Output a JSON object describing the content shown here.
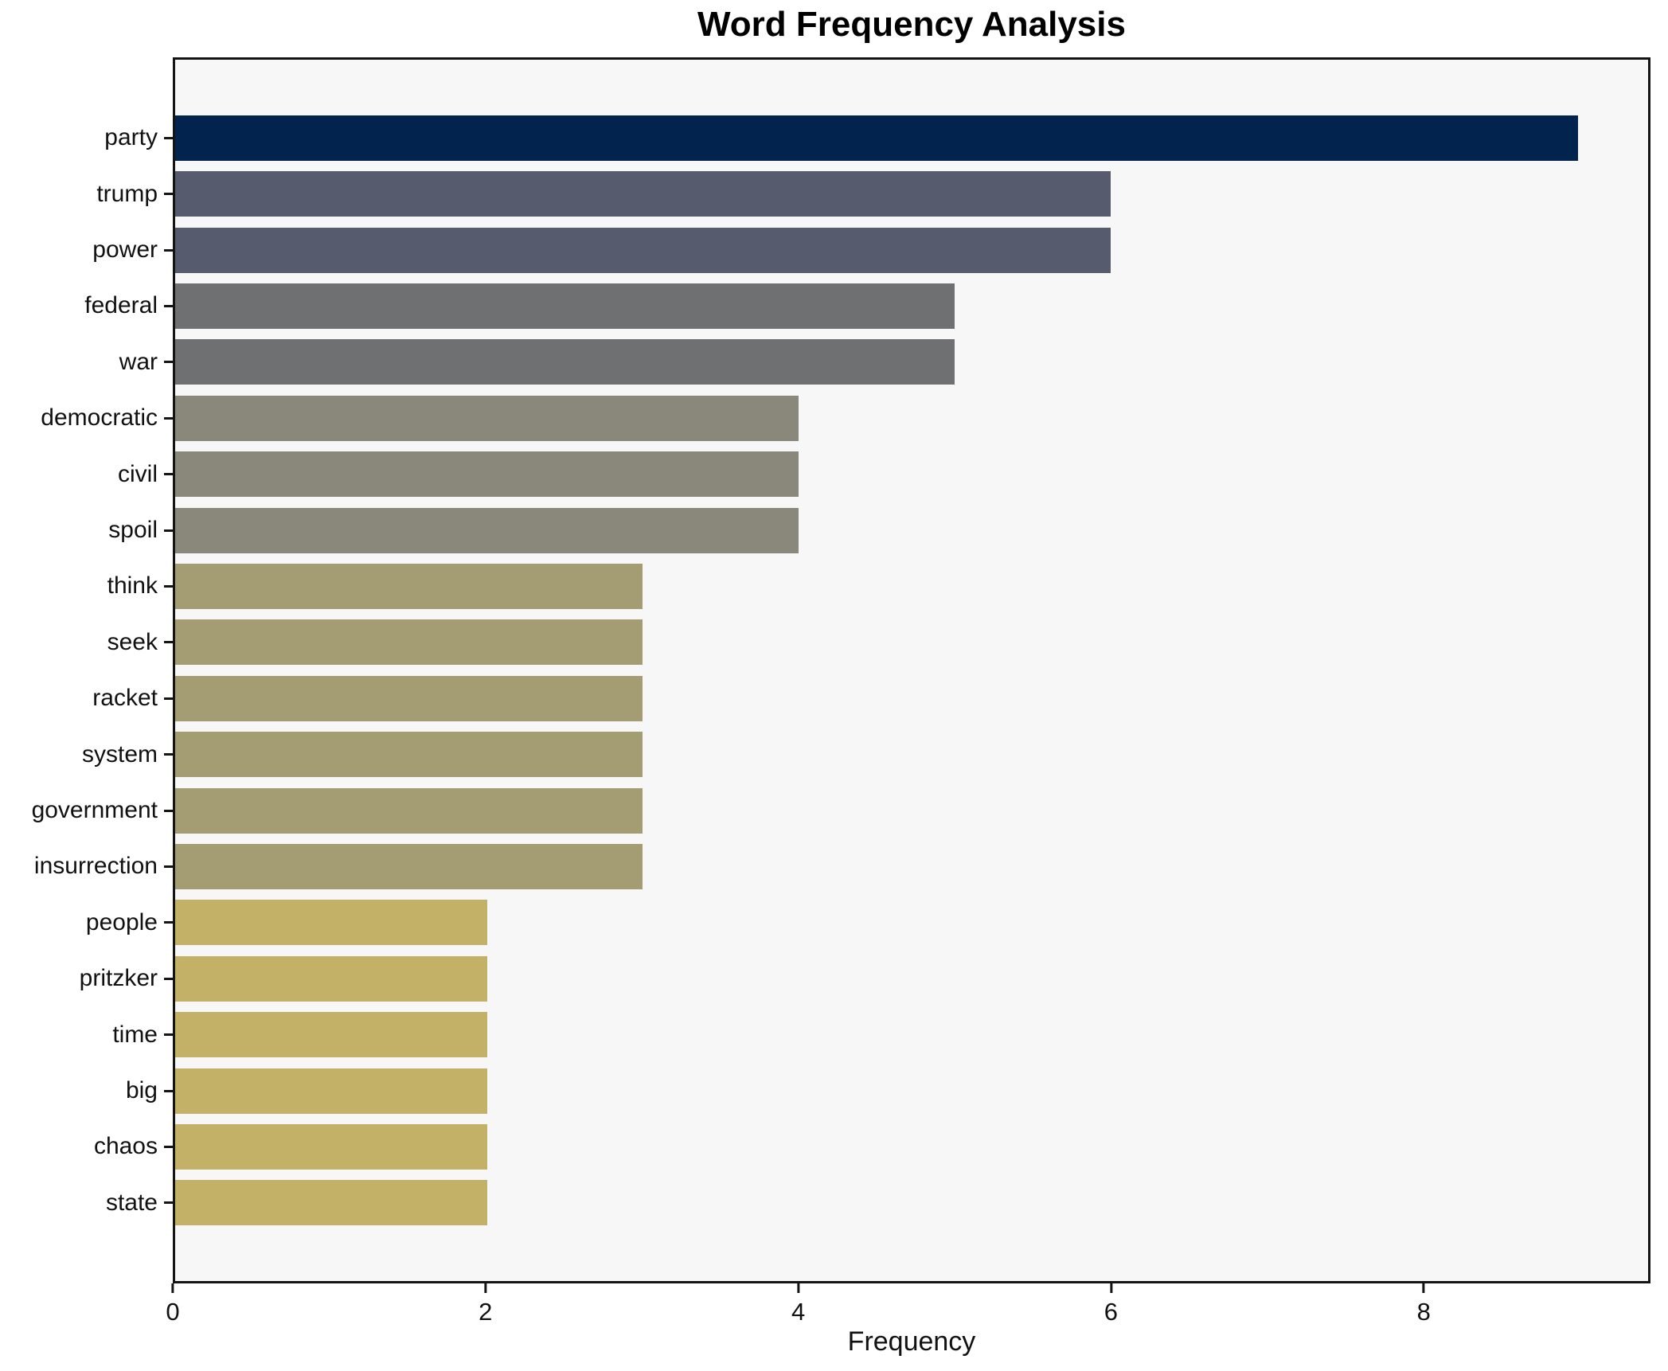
{
  "title": "Word Frequency Analysis",
  "xlabel": "Frequency",
  "chart_data": {
    "type": "bar",
    "orientation": "horizontal",
    "title": "Word Frequency Analysis",
    "xlabel": "Frequency",
    "ylabel": "",
    "categories": [
      "party",
      "trump",
      "power",
      "federal",
      "war",
      "democratic",
      "civil",
      "spoil",
      "think",
      "seek",
      "racket",
      "system",
      "government",
      "insurrection",
      "people",
      "pritzker",
      "time",
      "big",
      "chaos",
      "state"
    ],
    "values": [
      9,
      6,
      6,
      5,
      5,
      4,
      4,
      4,
      3,
      3,
      3,
      3,
      3,
      3,
      2,
      2,
      2,
      2,
      2,
      2
    ],
    "xticks": [
      0,
      2,
      4,
      6,
      8
    ],
    "xlim": [
      0,
      9.45
    ],
    "grid": false,
    "legend": null,
    "colors": {
      "value_9": "#02234d",
      "value_6": "#565c6e",
      "value_5": "#6e7072",
      "value_4": "#8a887a",
      "value_3": "#a49c72",
      "value_2": "#c3b167",
      "plot_background": "#f7f7f8",
      "figure_background": "#ffffff",
      "spine": "#141414",
      "text": "#111111"
    }
  }
}
